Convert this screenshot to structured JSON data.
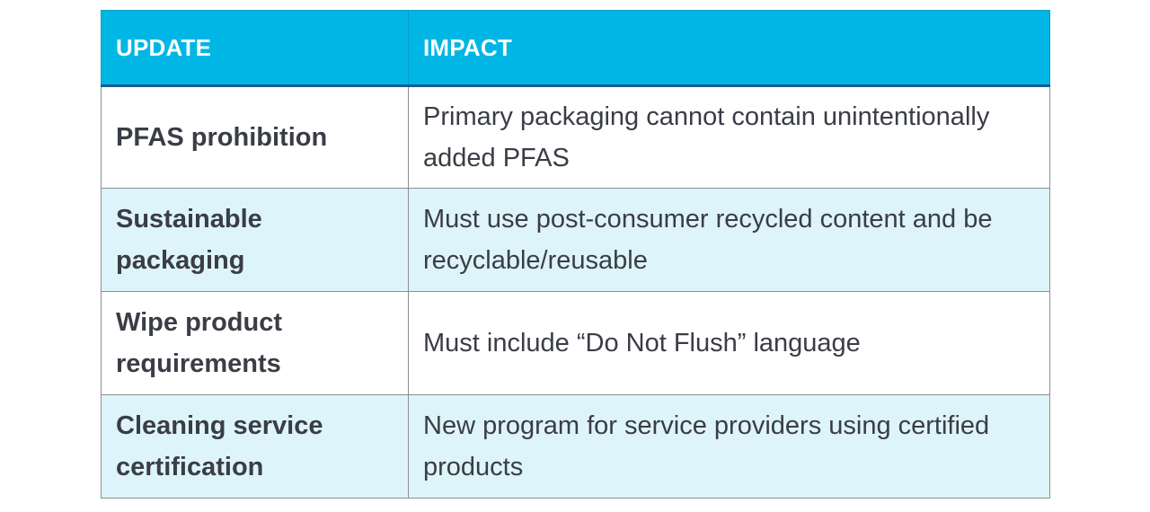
{
  "table": {
    "headers": {
      "update": "UPDATE",
      "impact": "IMPACT"
    },
    "rows": [
      {
        "update": "PFAS prohibition",
        "impact": "Primary packaging cannot contain unintentionally added PFAS"
      },
      {
        "update": "Sustainable packaging",
        "impact": "Must use post-consumer recycled content and be recyclable/reusable"
      },
      {
        "update": "Wipe product requirements",
        "impact": "Must include “Do Not Flush” language"
      },
      {
        "update": "Cleaning service certification",
        "impact": "New program for service providers using certified products"
      }
    ]
  },
  "colors": {
    "header_background": "#00b6e4",
    "header_text": "#ffffff",
    "header_bottom_rule": "#1d5a92",
    "shaded_row": "#def4fb",
    "body_text": "#3a3d45",
    "grid_lines": "#8a8f94"
  }
}
